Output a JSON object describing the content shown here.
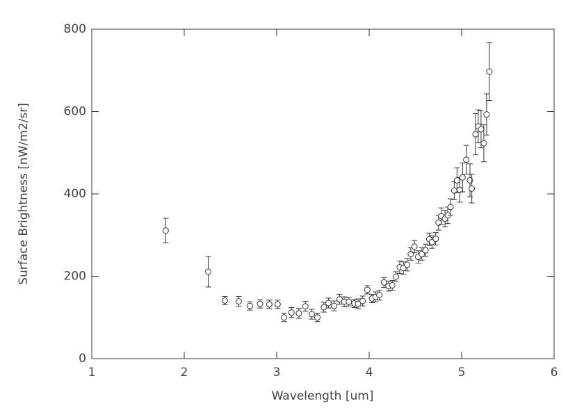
{
  "chart_data": {
    "type": "scatter",
    "x_label": "Wavelength [um]",
    "y_label": "Surface Brightness [nW/m2/sr]",
    "xlim": [
      1,
      6
    ],
    "xticks": [
      1,
      2,
      3,
      4,
      5,
      6
    ],
    "ylim": [
      0,
      800
    ],
    "yticks": [
      0,
      200,
      400,
      600,
      800
    ],
    "color": "#333333",
    "x": [
      1.8,
      2.26,
      2.44,
      2.59,
      2.71,
      2.82,
      2.92,
      3.01,
      3.08,
      3.16,
      3.24,
      3.31,
      3.38,
      3.44,
      3.51,
      3.56,
      3.62,
      3.68,
      3.73,
      3.78,
      3.84,
      3.88,
      3.93,
      3.98,
      4.03,
      4.07,
      4.11,
      4.16,
      4.21,
      4.25,
      4.29,
      4.33,
      4.37,
      4.41,
      4.45,
      4.49,
      4.53,
      4.57,
      4.61,
      4.65,
      4.68,
      4.72,
      4.75,
      4.78,
      4.82,
      4.85,
      4.88,
      4.92,
      4.95,
      4.98,
      5.01,
      5.05,
      5.09,
      5.11,
      5.15,
      5.18,
      5.21,
      5.24,
      5.27,
      5.3
    ],
    "values": [
      311,
      211,
      141,
      139,
      128,
      133,
      132,
      132,
      100,
      112,
      110,
      127,
      108,
      100,
      125,
      135,
      128,
      144,
      138,
      138,
      134,
      133,
      140,
      167,
      146,
      150,
      154,
      185,
      176,
      178,
      199,
      222,
      220,
      228,
      254,
      272,
      247,
      254,
      263,
      290,
      283,
      291,
      330,
      346,
      340,
      348,
      368,
      408,
      433,
      410,
      440,
      483,
      433,
      413,
      545,
      564,
      557,
      523,
      593,
      697
    ],
    "errors": [
      30,
      37,
      10,
      12,
      10,
      10,
      10,
      10,
      10,
      12,
      12,
      12,
      12,
      10,
      12,
      12,
      12,
      12,
      12,
      10,
      10,
      12,
      12,
      10,
      10,
      12,
      12,
      12,
      12,
      12,
      12,
      15,
      15,
      15,
      15,
      15,
      15,
      15,
      15,
      15,
      15,
      15,
      18,
      20,
      20,
      20,
      20,
      22,
      30,
      30,
      35,
      35,
      40,
      35,
      50,
      40,
      45,
      45,
      50,
      70
    ]
  }
}
